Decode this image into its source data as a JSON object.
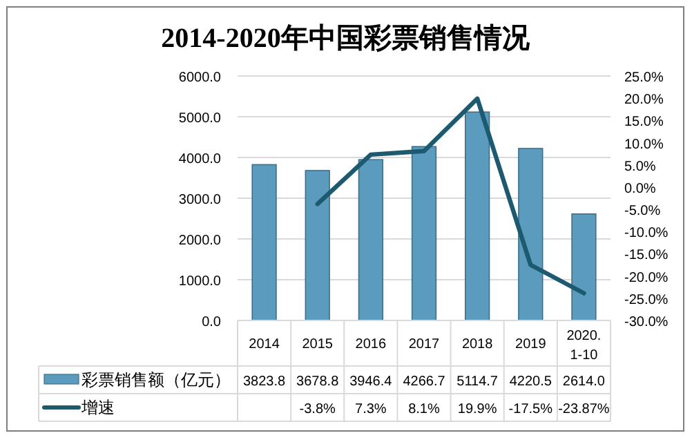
{
  "chart_data": {
    "type": "bar",
    "title": "2014-2020年中国彩票销售情况",
    "categories": [
      "2014",
      "2015",
      "2016",
      "2017",
      "2018",
      "2019",
      "2020.1-10"
    ],
    "series": [
      {
        "name": "彩票销售额（亿元）",
        "color": "#5b9bbd",
        "values": [
          3823.8,
          3678.8,
          3946.4,
          4266.7,
          5114.7,
          4220.5,
          2614.0
        ],
        "value_labels": [
          "3823.8",
          "3678.8",
          "3946.4",
          "4266.7",
          "5114.7",
          "4220.5",
          "2614.0"
        ]
      },
      {
        "name": "增速",
        "type": "line",
        "axis": "y2",
        "color": "#1d5a70",
        "values": [
          null,
          -3.8,
          7.3,
          8.1,
          19.9,
          -17.5,
          -23.87
        ],
        "value_labels": [
          null,
          "-3.8%",
          "7.3%",
          "8.1%",
          "19.9%",
          "-17.5%",
          "-23.87%"
        ]
      }
    ],
    "ylim": [
      0,
      6000
    ],
    "yticks": [
      {
        "value": 0,
        "label": "0.0"
      },
      {
        "value": 1000,
        "label": "1000.0"
      },
      {
        "value": 2000,
        "label": "2000.0"
      },
      {
        "value": 3000,
        "label": "3000.0"
      },
      {
        "value": 4000,
        "label": "4000.0"
      },
      {
        "value": 5000,
        "label": "5000.0"
      },
      {
        "value": 6000,
        "label": "6000.0"
      }
    ],
    "y2lim": [
      -30,
      25
    ],
    "y2ticks": [
      {
        "value": -30,
        "label": "-30.0%"
      },
      {
        "value": -25,
        "label": "-25.0%"
      },
      {
        "value": -20,
        "label": "-20.0%"
      },
      {
        "value": -15,
        "label": "-15.0%"
      },
      {
        "value": -10,
        "label": "-10.0%"
      },
      {
        "value": -5,
        "label": "-5.0%"
      },
      {
        "value": 0,
        "label": "0.0%"
      },
      {
        "value": 5,
        "label": "5.0%"
      },
      {
        "value": 10,
        "label": "10.0%"
      },
      {
        "value": 15,
        "label": "15.0%"
      },
      {
        "value": 20,
        "label": "20.0%"
      },
      {
        "value": 25,
        "label": "25.0%"
      }
    ],
    "grid": "y",
    "legend": "bottom",
    "marker": "none"
  }
}
